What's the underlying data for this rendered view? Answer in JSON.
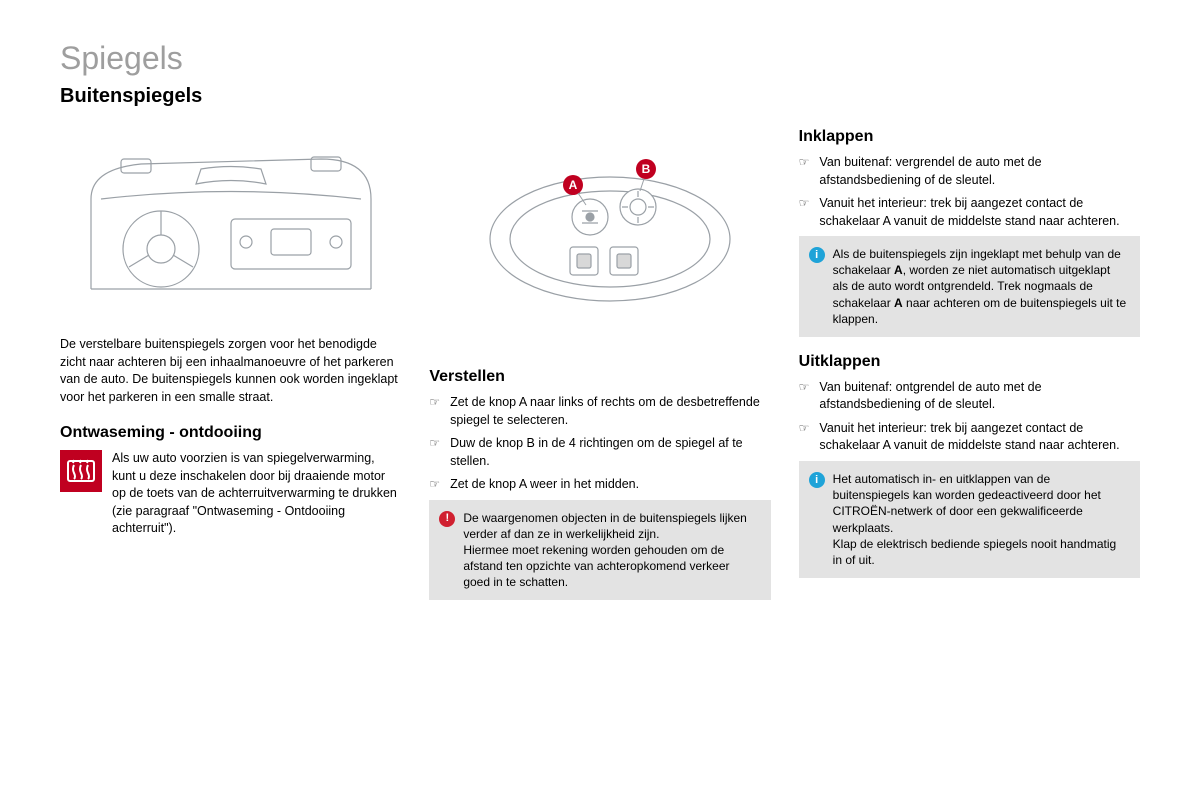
{
  "page": {
    "title": "Spiegels",
    "subtitle": "Buitenspiegels"
  },
  "col1": {
    "intro": "De verstelbare buitenspiegels zorgen voor het benodigde zicht naar achteren bij een inhaalmanoeuvre of het parkeren van de auto. De buitenspiegels kunnen ook worden ingeklapt voor het parkeren in een smalle straat.",
    "section1_heading": "Ontwaseming - ontdooiing",
    "section1_text": "Als uw auto voorzien is van spiegelverwarming, kunt u deze inschakelen door bij draaiende motor op de toets van de achterruitverwarming te drukken (zie paragraaf \"Ontwaseming - Ontdooiing achterruit\")."
  },
  "col2": {
    "illustration_badges": {
      "A": "A",
      "B": "B"
    },
    "heading": "Verstellen",
    "steps": [
      "Zet de knop A naar links of rechts om de desbetreffende spiegel te selecteren.",
      "Duw de knop B in de 4 richtingen om de spiegel af te stellen.",
      "Zet de knop A weer in het midden."
    ],
    "warning_text": "De waargenomen objecten in de buitenspiegels lijken verder af dan ze in werkelijkheid zijn.\nHiermee moet rekening worden gehouden om de afstand ten opzichte van achteropkomend verkeer goed in te schatten."
  },
  "col3": {
    "section1_heading": "Inklappen",
    "section1_steps": [
      "Van buitenaf: vergrendel de auto met de afstandsbediening of de sleutel.",
      "Vanuit het interieur: trek bij aangezet contact de schakelaar A vanuit de middelste stand naar achteren."
    ],
    "note1_html": "Als de buitenspiegels zijn ingeklapt met behulp van de schakelaar <b>A</b>, worden ze niet automatisch uitgeklapt als de auto wordt ontgrendeld. Trek nogmaals de schakelaar <b>A</b> naar achteren om de buitenspiegels uit te klappen.",
    "section2_heading": "Uitklappen",
    "section2_steps": [
      "Van buitenaf: ontgrendel de auto met de afstandsbediening of de sleutel.",
      "Vanuit het interieur: trek bij aangezet contact de schakelaar A vanuit de middelste stand naar achteren."
    ],
    "note2_text": "Het automatisch in- en uitklappen van de buitenspiegels kan worden gedeactiveerd door het CITROËN-netwerk of door een gekwalificeerde werkplaats.\nKlap de elektrisch bediende spiegels nooit handmatig in of uit."
  },
  "colors": {
    "title_gray": "#9e9e9e",
    "accent_red": "#c00020",
    "info_bg": "#e3e3e3",
    "warn_icon": "#d02030",
    "note_icon": "#1fa3d8"
  }
}
